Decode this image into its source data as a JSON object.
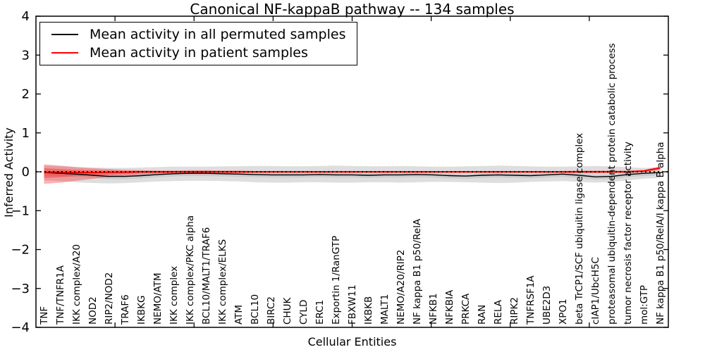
{
  "title": "Canonical NF-kappaB pathway -- 134 samples",
  "legend": {
    "items": [
      {
        "label": "Mean activity in all permuted samples",
        "color": "#000000"
      },
      {
        "label": "Mean activity in patient samples",
        "color": "#ff0000"
      }
    ]
  },
  "chart_data": {
    "type": "line",
    "title": "Canonical NF-kappaB pathway -- 134 samples",
    "xlabel": "Cellular Entities",
    "ylabel": "Inferred Activity",
    "ylim": [
      -4,
      4
    ],
    "yticks": [
      4,
      3,
      2,
      1,
      0,
      -1,
      -2,
      -3,
      -4
    ],
    "ytick_labels": [
      "4",
      "3",
      "2",
      "1",
      "0",
      "−1",
      "−2",
      "−3",
      "−4"
    ],
    "grid": false,
    "legend_position": "upper left",
    "categories": [
      "TNF",
      "TNF/TNFR1A",
      "IKK complex/A20",
      "NOD2",
      "RIP2/NOD2",
      "TRAF6",
      "IKBKG",
      "NEMO/ATM",
      "IKK complex",
      "IKK complex/PKC alpha",
      "BCL10/MALT1/TRAF6",
      "IKK complex/ELKS",
      "ATM",
      "BCL10",
      "BIRC2",
      "CHUK",
      "CYLD",
      "ERC1",
      "Exportin 1/RanGTP",
      "FBXW11",
      "IKBKB",
      "MALT1",
      "NEMO/A20/RIP2",
      "NF kappa B1 p50/RelA",
      "NFKB1",
      "NFKBIA",
      "PRKCA",
      "RAN",
      "RELA",
      "RIPK2",
      "TNFRSF1A",
      "UBE2D3",
      "XPO1",
      "beta TrCP1/SCF ubiquitin ligase complex",
      "cIAP1/UbcH5C",
      "proteasomal ubiquitin-dependent protein catabolic process",
      "tumor necrosis factor receptor activity",
      "mol:GTP",
      "NF kappa B1 p50/RelA/I kappa B alpha"
    ],
    "series": [
      {
        "name": "Mean activity in all permuted samples",
        "color": "#000000",
        "values": [
          -0.02,
          -0.04,
          -0.06,
          -0.09,
          -0.12,
          -0.12,
          -0.1,
          -0.07,
          -0.05,
          -0.04,
          -0.04,
          -0.05,
          -0.06,
          -0.07,
          -0.08,
          -0.08,
          -0.08,
          -0.07,
          -0.08,
          -0.08,
          -0.09,
          -0.08,
          -0.08,
          -0.07,
          -0.08,
          -0.1,
          -0.11,
          -0.09,
          -0.08,
          -0.09,
          -0.1,
          -0.08,
          -0.06,
          -0.09,
          -0.13,
          -0.12,
          -0.07,
          -0.04,
          -0.02
        ]
      },
      {
        "name": "Mean activity in patient samples",
        "color": "#ff0000",
        "values": [
          -0.01,
          -0.01,
          -0.02,
          -0.02,
          -0.01,
          -0.01,
          0.0,
          0.0,
          0.0,
          0.0,
          0.0,
          0.0,
          0.0,
          0.0,
          0.0,
          0.0,
          0.0,
          0.0,
          0.0,
          0.0,
          0.0,
          0.0,
          0.0,
          0.0,
          0.0,
          0.0,
          0.0,
          0.0,
          0.0,
          0.0,
          0.0,
          0.0,
          0.0,
          0.0,
          0.0,
          0.0,
          0.0,
          0.02,
          0.1
        ]
      }
    ],
    "bands": [
      {
        "name": "permuted-std-band",
        "color": "#000000",
        "opacity": 0.13,
        "upper": [
          0.16,
          0.14,
          0.12,
          0.11,
          0.1,
          0.1,
          0.11,
          0.12,
          0.13,
          0.13,
          0.13,
          0.14,
          0.14,
          0.15,
          0.15,
          0.14,
          0.14,
          0.15,
          0.16,
          0.15,
          0.14,
          0.14,
          0.15,
          0.14,
          0.13,
          0.13,
          0.14,
          0.15,
          0.16,
          0.15,
          0.14,
          0.13,
          0.13,
          0.14,
          0.15,
          0.14,
          0.12,
          0.1,
          0.11
        ],
        "lower": [
          -0.22,
          -0.24,
          -0.27,
          -0.29,
          -0.3,
          -0.29,
          -0.27,
          -0.25,
          -0.24,
          -0.23,
          -0.23,
          -0.24,
          -0.25,
          -0.27,
          -0.28,
          -0.28,
          -0.27,
          -0.27,
          -0.28,
          -0.28,
          -0.27,
          -0.27,
          -0.28,
          -0.27,
          -0.26,
          -0.26,
          -0.27,
          -0.28,
          -0.29,
          -0.28,
          -0.26,
          -0.25,
          -0.24,
          -0.26,
          -0.28,
          -0.26,
          -0.22,
          -0.18,
          -0.16
        ]
      },
      {
        "name": "permuted-inner-band",
        "color": "#000000",
        "opacity": 0.08,
        "upper": [
          0.03,
          0.01,
          -0.01,
          -0.04,
          -0.07,
          -0.07,
          -0.05,
          -0.02,
          0.0,
          0.01,
          0.01,
          0.0,
          -0.01,
          -0.02,
          -0.03,
          -0.03,
          -0.03,
          -0.02,
          -0.03,
          -0.03,
          -0.04,
          -0.03,
          -0.03,
          -0.02,
          -0.03,
          -0.05,
          -0.06,
          -0.04,
          -0.03,
          -0.04,
          -0.05,
          -0.03,
          -0.01,
          -0.04,
          -0.08,
          -0.07,
          -0.02,
          0.01,
          0.03
        ],
        "lower": [
          -0.09,
          -0.11,
          -0.13,
          -0.16,
          -0.19,
          -0.19,
          -0.17,
          -0.14,
          -0.12,
          -0.11,
          -0.11,
          -0.12,
          -0.13,
          -0.14,
          -0.15,
          -0.15,
          -0.15,
          -0.14,
          -0.15,
          -0.15,
          -0.16,
          -0.15,
          -0.15,
          -0.14,
          -0.15,
          -0.17,
          -0.18,
          -0.16,
          -0.15,
          -0.16,
          -0.17,
          -0.15,
          -0.13,
          -0.16,
          -0.2,
          -0.19,
          -0.14,
          -0.11,
          -0.09
        ]
      },
      {
        "name": "patient-std-band",
        "color": "#ff0000",
        "opacity": 0.3,
        "upper": [
          0.19,
          0.16,
          0.12,
          0.09,
          0.07,
          0.05,
          0.04,
          0.03,
          0.03,
          0.04,
          0.04,
          0.03,
          0.03,
          0.02,
          0.02,
          0.02,
          0.02,
          0.02,
          0.02,
          0.02,
          0.02,
          0.02,
          0.02,
          0.02,
          0.02,
          0.02,
          0.02,
          0.02,
          0.02,
          0.02,
          0.02,
          0.02,
          0.02,
          0.03,
          0.03,
          0.03,
          0.03,
          0.05,
          0.14
        ],
        "lower": [
          -0.31,
          -0.28,
          -0.23,
          -0.18,
          -0.14,
          -0.1,
          -0.07,
          -0.05,
          -0.05,
          -0.06,
          -0.06,
          -0.05,
          -0.04,
          -0.03,
          -0.03,
          -0.03,
          -0.03,
          -0.03,
          -0.03,
          -0.03,
          -0.03,
          -0.03,
          -0.03,
          -0.03,
          -0.03,
          -0.03,
          -0.03,
          -0.03,
          -0.03,
          -0.03,
          -0.03,
          -0.03,
          -0.03,
          -0.04,
          -0.04,
          -0.04,
          -0.03,
          -0.01,
          0.05
        ]
      },
      {
        "name": "patient-inner-band",
        "color": "#ff0000",
        "opacity": 0.3,
        "upper": [
          0.09,
          0.07,
          0.05,
          0.04,
          0.03,
          0.02,
          0.02,
          0.01,
          0.01,
          0.02,
          0.02,
          0.01,
          0.01,
          0.01,
          0.01,
          0.01,
          0.01,
          0.01,
          0.01,
          0.01,
          0.01,
          0.01,
          0.01,
          0.01,
          0.01,
          0.01,
          0.01,
          0.01,
          0.01,
          0.01,
          0.01,
          0.01,
          0.01,
          0.01,
          0.01,
          0.01,
          0.01,
          0.03,
          0.12
        ],
        "lower": [
          -0.16,
          -0.14,
          -0.11,
          -0.09,
          -0.07,
          -0.05,
          -0.04,
          -0.03,
          -0.03,
          -0.03,
          -0.03,
          -0.03,
          -0.02,
          -0.02,
          -0.02,
          -0.02,
          -0.02,
          -0.02,
          -0.02,
          -0.02,
          -0.02,
          -0.02,
          -0.02,
          -0.02,
          -0.02,
          -0.02,
          -0.02,
          -0.02,
          -0.02,
          -0.02,
          -0.02,
          -0.02,
          -0.02,
          -0.02,
          -0.02,
          -0.02,
          -0.02,
          0.0,
          0.07
        ]
      }
    ],
    "zero_line": {
      "style": "dotted",
      "color": "#000000",
      "y": 0
    }
  }
}
